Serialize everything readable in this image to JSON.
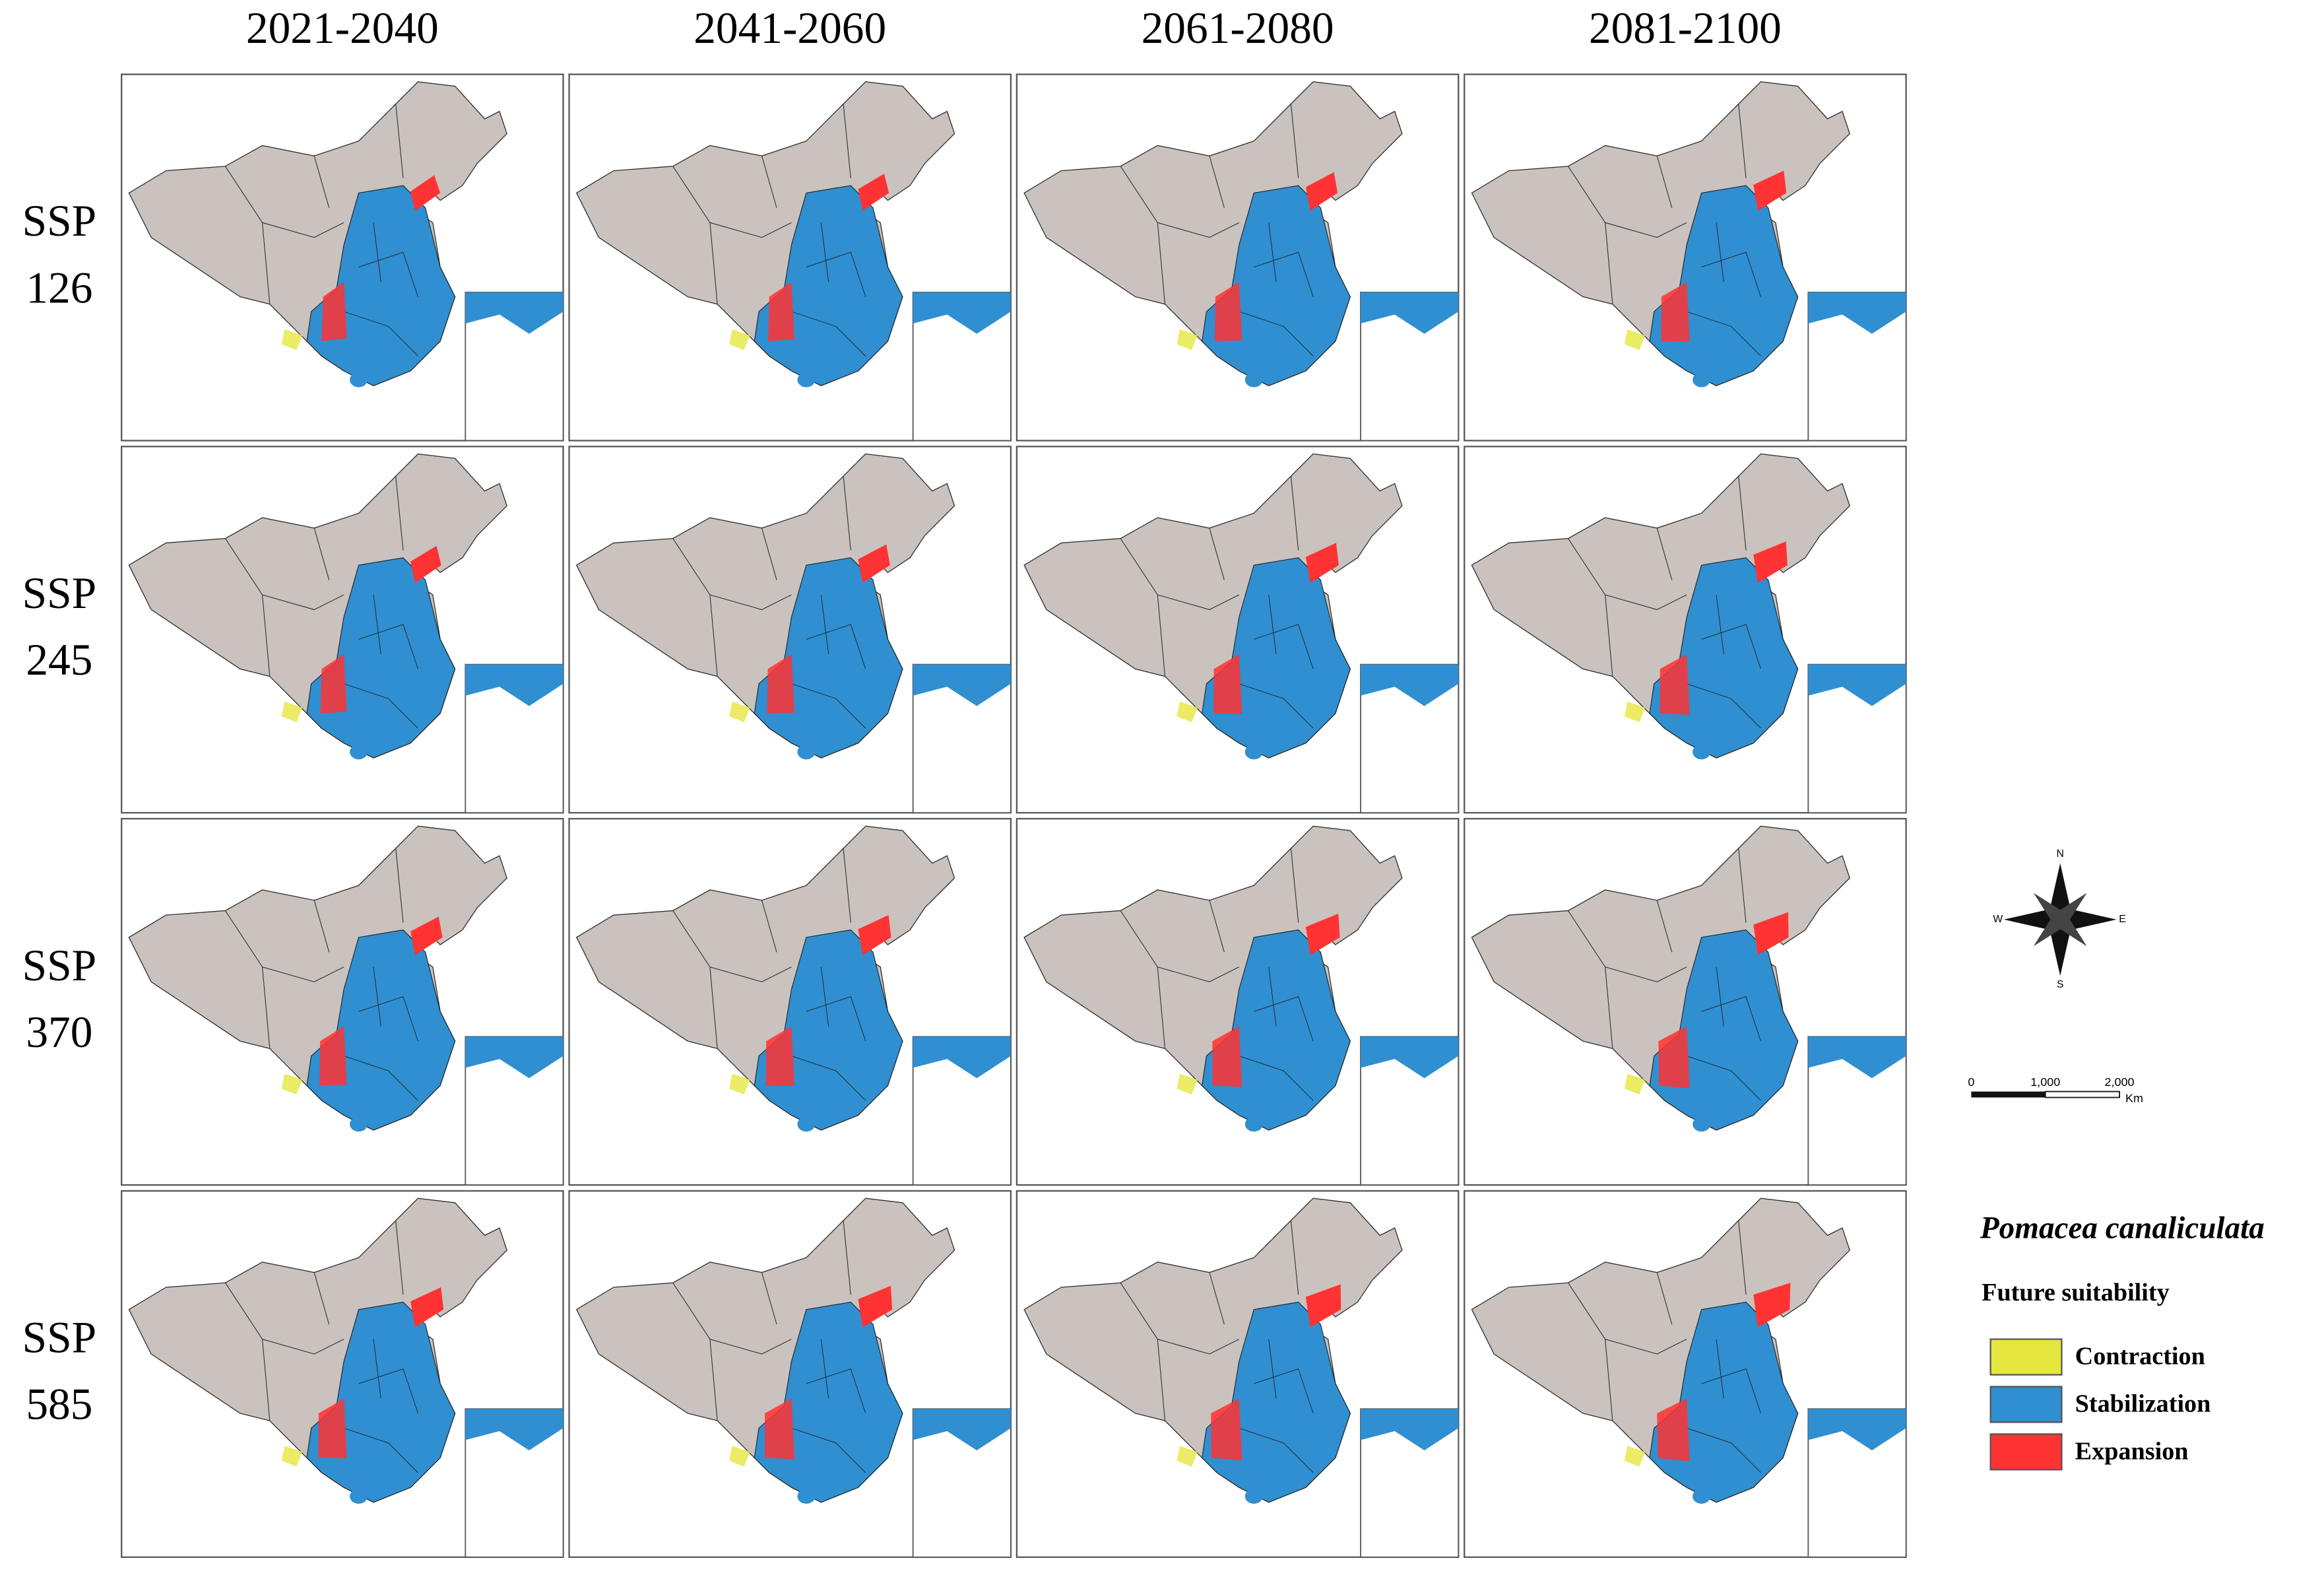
{
  "columns": [
    "2021-2040",
    "2041-2060",
    "2061-2080",
    "2081-2100"
  ],
  "rows": [
    [
      "SSP",
      "126"
    ],
    [
      "SSP",
      "245"
    ],
    [
      "SSP",
      "370"
    ],
    [
      "SSP",
      "585"
    ]
  ],
  "compass": {
    "n": "N",
    "s": "S",
    "e": "E",
    "w": "W"
  },
  "scale": {
    "labels": [
      "0",
      "1,000",
      "2,000"
    ],
    "unit": "Km"
  },
  "legend": {
    "species": "Pomacea canaliculata",
    "title": "Future suitability",
    "items": [
      "Contraction",
      "Stabilization",
      "Expansion"
    ]
  }
}
